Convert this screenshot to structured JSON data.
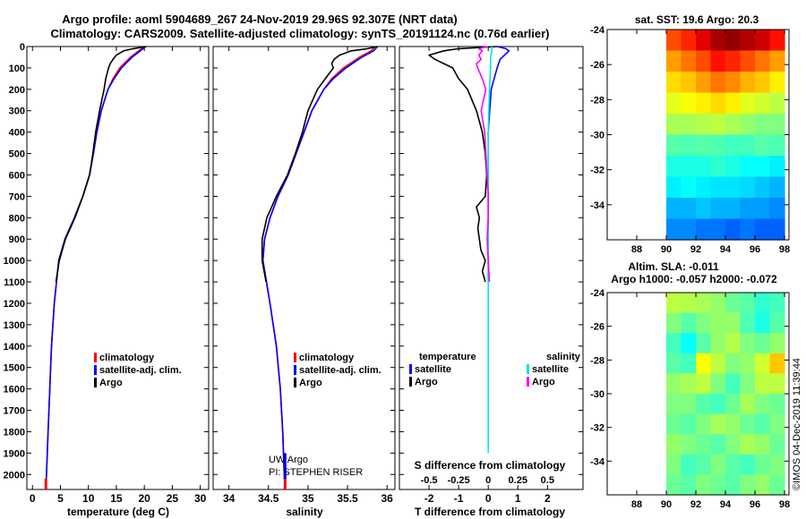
{
  "title": {
    "line1": "Argo profile: aoml 5904689_267 24-Nov-2019 29.96S 92.307E (NRT data)",
    "line2": "Climatology: CARS2009. Satellite-adjusted climatology: synTS_20191124.nc (0.76d earlier)"
  },
  "credit": {
    "line1": "UW Argo",
    "line2": "PI: STEPHEN RISER",
    "imos": "©IMOS 04-Dec-2019 11:39:44"
  },
  "colors": {
    "climatology": "#ff0000",
    "satellite": "#0000ff",
    "argo": "#000000",
    "satellite_s": "#00e5e5",
    "argo_s": "#ff00ff"
  },
  "chart_data": [
    {
      "type": "line",
      "id": "temperature",
      "xlabel": "temperature (deg C)",
      "ylabel": "",
      "xlim": [
        -1,
        31.5
      ],
      "ylim": [
        2070,
        0
      ],
      "xticks": [
        0,
        5,
        10,
        15,
        20,
        25,
        30
      ],
      "yticks": [
        0,
        100,
        200,
        300,
        400,
        500,
        600,
        700,
        800,
        900,
        1000,
        1100,
        1200,
        1300,
        1400,
        1500,
        1600,
        1700,
        1800,
        1900,
        2000
      ],
      "legend": [
        "climatology",
        "satellite-adj. clim.",
        "Argo"
      ],
      "series": [
        {
          "name": "climatology",
          "color": "#ff0000",
          "depth": [
            0,
            20,
            50,
            100,
            150,
            200,
            300,
            400,
            500,
            600,
            700,
            800,
            900,
            1000,
            1200,
            1400,
            1600,
            1800,
            2000,
            2065
          ],
          "values": [
            20.0,
            19.0,
            17.5,
            15.6,
            14.4,
            13.5,
            12.3,
            11.5,
            10.9,
            10.2,
            9.0,
            7.5,
            5.8,
            4.7,
            3.9,
            3.4,
            3.1,
            2.8,
            2.5,
            2.4
          ]
        },
        {
          "name": "satellite-adj. clim.",
          "color": "#0000ff",
          "depth": [
            0,
            20,
            50,
            100,
            150,
            200,
            300,
            400,
            500,
            600,
            700,
            800,
            900,
            1000,
            1200,
            1400,
            1600,
            1800,
            2000,
            2065
          ],
          "values": [
            20.3,
            19.3,
            17.8,
            15.9,
            14.6,
            13.5,
            12.3,
            11.5,
            10.9,
            10.2,
            9.0,
            7.5,
            5.8,
            4.7,
            3.9,
            3.4,
            3.1,
            2.8,
            2.5,
            2.4
          ]
        },
        {
          "name": "Argo",
          "color": "#000000",
          "depth": [
            0,
            10,
            20,
            40,
            60,
            80,
            100,
            150,
            200,
            300,
            400,
            500,
            600,
            700,
            800,
            900,
            1000,
            1100
          ],
          "values": [
            20.3,
            18.0,
            16.3,
            15.0,
            14.4,
            13.9,
            13.6,
            13.1,
            12.8,
            12.0,
            11.3,
            10.8,
            10.2,
            9.0,
            7.6,
            5.9,
            4.8,
            4.2
          ]
        }
      ]
    },
    {
      "type": "line",
      "id": "salinity",
      "xlabel": "salinity",
      "xlim": [
        33.8,
        36.1
      ],
      "ylim": [
        2070,
        0
      ],
      "xticks": [
        34,
        34.5,
        35,
        35.5,
        36
      ],
      "legend": [
        "climatology",
        "satellite-adj. clim.",
        "Argo"
      ],
      "series": [
        {
          "name": "climatology",
          "color": "#ff0000",
          "depth": [
            0,
            20,
            50,
            100,
            150,
            200,
            300,
            400,
            500,
            600,
            700,
            800,
            900,
            1000,
            1200,
            1400,
            1600,
            1800,
            2000,
            2065
          ],
          "values": [
            35.85,
            35.8,
            35.65,
            35.45,
            35.3,
            35.2,
            35.05,
            34.95,
            34.85,
            34.75,
            34.62,
            34.52,
            34.45,
            34.43,
            34.52,
            34.6,
            34.65,
            34.68,
            34.7,
            34.71
          ]
        },
        {
          "name": "satellite-adj. clim.",
          "color": "#0000ff",
          "depth": [
            0,
            20,
            50,
            100,
            150,
            200,
            300,
            400,
            500,
            600,
            700,
            800,
            900,
            1000,
            1200,
            1400,
            1600,
            1800,
            2000,
            2065
          ],
          "values": [
            35.88,
            35.83,
            35.68,
            35.48,
            35.32,
            35.2,
            35.05,
            34.95,
            34.85,
            34.75,
            34.62,
            34.52,
            34.45,
            34.43,
            34.52,
            34.6,
            34.65,
            34.68,
            34.7,
            34.71
          ]
        },
        {
          "name": "Argo",
          "color": "#000000",
          "depth": [
            0,
            10,
            20,
            40,
            60,
            80,
            100,
            150,
            200,
            300,
            400,
            500,
            600,
            700,
            800,
            900,
            1000,
            1100
          ],
          "values": [
            35.88,
            35.75,
            35.55,
            35.4,
            35.33,
            35.3,
            35.32,
            35.22,
            35.12,
            35.0,
            34.93,
            34.84,
            34.74,
            34.6,
            34.48,
            34.42,
            34.42,
            34.47
          ]
        }
      ]
    },
    {
      "type": "line",
      "id": "differences",
      "xlabel": "T difference from climatology",
      "xlabel_top": "S difference from climatology",
      "xlim": [
        -3,
        3.2
      ],
      "ylim": [
        2070,
        0
      ],
      "xticks": [
        -2,
        -1,
        0,
        1,
        2
      ],
      "xticks_s": [
        -0.5,
        -0.25,
        0,
        0.25,
        0.5
      ],
      "xticks_s_labels": [
        "-0.5",
        "-0.25",
        "0",
        "0.25",
        "0.5"
      ],
      "legend_title_t": "temperature",
      "legend_title_s": "salinity",
      "legend_t": [
        "satellite",
        "Argo"
      ],
      "legend_s": [
        "satellite",
        "Argo"
      ],
      "series": [
        {
          "name": "T satellite",
          "color": "#0000ff",
          "depth": [
            0,
            10,
            20,
            40,
            60,
            80,
            100,
            150,
            200,
            300,
            400,
            600,
            800,
            1000,
            1100
          ],
          "values": [
            0.3,
            0.6,
            0.7,
            0.55,
            0.4,
            0.35,
            0.3,
            0.2,
            0.1,
            0.05,
            0.0,
            0.0,
            0.0,
            0.0,
            0.0
          ]
        },
        {
          "name": "T Argo",
          "color": "#000000",
          "depth": [
            0,
            10,
            20,
            40,
            60,
            80,
            100,
            150,
            200,
            300,
            400,
            500,
            600,
            700,
            750,
            800,
            850,
            900,
            950,
            1000,
            1050,
            1100
          ],
          "values": [
            0.3,
            -1.0,
            -1.5,
            -2.0,
            -1.8,
            -1.5,
            -1.2,
            -1.0,
            -0.7,
            -0.4,
            -0.2,
            -0.1,
            -0.05,
            -0.1,
            -0.4,
            -0.3,
            -0.35,
            -0.3,
            -0.25,
            -0.1,
            -0.2,
            -0.1
          ]
        },
        {
          "name": "S satellite",
          "color": "#00e5e5",
          "depth": [
            0,
            20,
            50,
            100,
            200,
            400,
            600,
            800,
            1000,
            1200,
            1400,
            1600,
            1800,
            1900
          ],
          "values": [
            0.03,
            0.03,
            0.02,
            0.02,
            0.01,
            0.0,
            0.0,
            0.0,
            0.0,
            0.0,
            0.0,
            0.0,
            0.0,
            0.0
          ]
        },
        {
          "name": "S Argo",
          "color": "#ff00ff",
          "depth": [
            0,
            10,
            20,
            40,
            60,
            80,
            100,
            150,
            200,
            300,
            400,
            500,
            600,
            700,
            800,
            900,
            1000,
            1100
          ],
          "values": [
            0.0,
            -0.08,
            -0.05,
            -0.08,
            -0.06,
            -0.1,
            -0.09,
            -0.05,
            -0.02,
            -0.06,
            -0.03,
            -0.02,
            -0.01,
            0.0,
            0.0,
            -0.01,
            0.0,
            0.01
          ]
        }
      ]
    },
    {
      "type": "heatmap",
      "id": "sst-map",
      "title": "sat. SST: 19.6 Argo: 20.3",
      "xlim": [
        86,
        98.3
      ],
      "ylim": [
        -36,
        -24
      ],
      "xticks": [
        88,
        90,
        92,
        94,
        96,
        98
      ],
      "yticks": [
        -24,
        -26,
        -28,
        -30,
        -32,
        -34
      ],
      "data_xrange": [
        90,
        98
      ],
      "colorscale": "jet",
      "values": [
        [
          0.8,
          0.84,
          0.9,
          0.96,
          0.98,
          0.95,
          0.92,
          0.86
        ],
        [
          0.72,
          0.76,
          0.8,
          0.86,
          0.84,
          0.8,
          0.76,
          0.72
        ],
        [
          0.66,
          0.68,
          0.72,
          0.76,
          0.74,
          0.7,
          0.68,
          0.64
        ],
        [
          0.6,
          0.62,
          0.64,
          0.66,
          0.64,
          0.6,
          0.58,
          0.56
        ],
        [
          0.54,
          0.54,
          0.55,
          0.56,
          0.54,
          0.52,
          0.5,
          0.5
        ],
        [
          0.46,
          0.45,
          0.46,
          0.45,
          0.44,
          0.44,
          0.46,
          0.45
        ],
        [
          0.4,
          0.4,
          0.4,
          0.42,
          0.4,
          0.38,
          0.38,
          0.36
        ],
        [
          0.36,
          0.38,
          0.36,
          0.35,
          0.35,
          0.34,
          0.32,
          0.3
        ],
        [
          0.3,
          0.3,
          0.32,
          0.3,
          0.3,
          0.28,
          0.28,
          0.26
        ],
        [
          0.26,
          0.26,
          0.24,
          0.24,
          0.22,
          0.24,
          0.22,
          0.22
        ]
      ]
    },
    {
      "type": "heatmap",
      "id": "sla-map",
      "title": "Altim. SLA: -0.011",
      "subtitle": "Argo h1000: -0.057 h2000: -0.072",
      "xlim": [
        86,
        98.3
      ],
      "ylim": [
        -36,
        -24
      ],
      "xticks": [
        88,
        90,
        92,
        94,
        96,
        98
      ],
      "yticks": [
        -24,
        -26,
        -28,
        -30,
        -32,
        -34
      ],
      "data_xrange": [
        90,
        98
      ],
      "colorscale": "jet",
      "values": [
        [
          0.56,
          0.55,
          0.54,
          0.52,
          0.48,
          0.46,
          0.42,
          0.44
        ],
        [
          0.5,
          0.46,
          0.5,
          0.52,
          0.52,
          0.45,
          0.4,
          0.46
        ],
        [
          0.44,
          0.38,
          0.46,
          0.52,
          0.55,
          0.5,
          0.48,
          0.52
        ],
        [
          0.46,
          0.44,
          0.62,
          0.56,
          0.5,
          0.52,
          0.58,
          0.68
        ],
        [
          0.52,
          0.54,
          0.56,
          0.5,
          0.44,
          0.5,
          0.56,
          0.56
        ],
        [
          0.5,
          0.5,
          0.46,
          0.44,
          0.48,
          0.54,
          0.5,
          0.48
        ],
        [
          0.48,
          0.46,
          0.5,
          0.54,
          0.52,
          0.48,
          0.46,
          0.5
        ],
        [
          0.52,
          0.5,
          0.48,
          0.46,
          0.5,
          0.54,
          0.52,
          0.48
        ],
        [
          0.5,
          0.44,
          0.46,
          0.5,
          0.46,
          0.44,
          0.48,
          0.5
        ],
        [
          0.48,
          0.46,
          0.5,
          0.48,
          0.46,
          0.5,
          0.52,
          0.48
        ]
      ]
    }
  ]
}
